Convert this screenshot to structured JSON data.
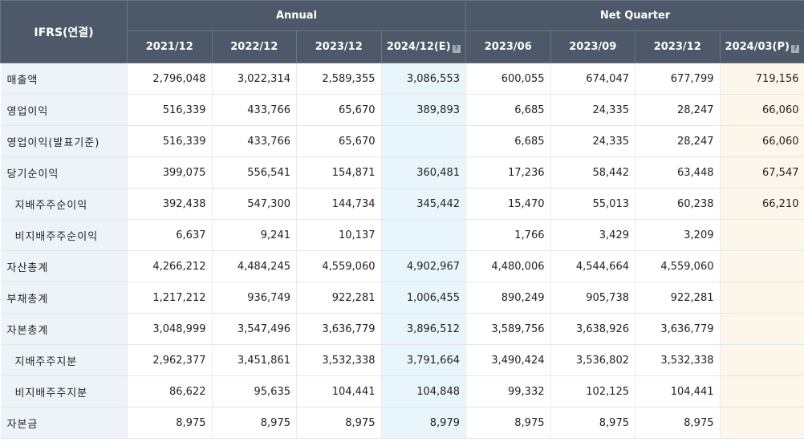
{
  "header": {
    "corner_label": "IFRS(연결)",
    "groups": {
      "annual": "Annual",
      "quarter": "Net Quarter"
    },
    "periods": [
      "2021/12",
      "2022/12",
      "2023/12",
      "2024/12(E)",
      "2023/06",
      "2023/09",
      "2023/12",
      "2024/03(P)"
    ],
    "estimate_icon": "info-square-icon"
  },
  "colors": {
    "header_bg": "#4d5868",
    "label_bg": "#eef3f9",
    "estimate_annual_bg": "#e8f5fb",
    "estimate_quarter_bg": "#fdf6ea"
  },
  "rows": [
    {
      "label": "매출액",
      "sub": false,
      "values": [
        "2,796,048",
        "3,022,314",
        "2,589,355",
        "3,086,553",
        "600,055",
        "674,047",
        "677,799",
        "719,156"
      ]
    },
    {
      "label": "영업이익",
      "sub": false,
      "values": [
        "516,339",
        "433,766",
        "65,670",
        "389,893",
        "6,685",
        "24,335",
        "28,247",
        "66,060"
      ]
    },
    {
      "label": "영업이익(발표기준)",
      "sub": false,
      "values": [
        "516,339",
        "433,766",
        "65,670",
        "",
        "6,685",
        "24,335",
        "28,247",
        "66,060"
      ]
    },
    {
      "label": "당기순이익",
      "sub": false,
      "values": [
        "399,075",
        "556,541",
        "154,871",
        "360,481",
        "17,236",
        "58,442",
        "63,448",
        "67,547"
      ]
    },
    {
      "label": "지배주주순이익",
      "sub": true,
      "values": [
        "392,438",
        "547,300",
        "144,734",
        "345,442",
        "15,470",
        "55,013",
        "60,238",
        "66,210"
      ]
    },
    {
      "label": "비지배주주순이익",
      "sub": true,
      "values": [
        "6,637",
        "9,241",
        "10,137",
        "",
        "1,766",
        "3,429",
        "3,209",
        ""
      ]
    },
    {
      "label": "자산총계",
      "sub": false,
      "values": [
        "4,266,212",
        "4,484,245",
        "4,559,060",
        "4,902,967",
        "4,480,006",
        "4,544,664",
        "4,559,060",
        ""
      ]
    },
    {
      "label": "부채총계",
      "sub": false,
      "values": [
        "1,217,212",
        "936,749",
        "922,281",
        "1,006,455",
        "890,249",
        "905,738",
        "922,281",
        ""
      ]
    },
    {
      "label": "자본총계",
      "sub": false,
      "values": [
        "3,048,999",
        "3,547,496",
        "3,636,779",
        "3,896,512",
        "3,589,756",
        "3,638,926",
        "3,636,779",
        ""
      ]
    },
    {
      "label": "지배주주지분",
      "sub": true,
      "values": [
        "2,962,377",
        "3,451,861",
        "3,532,338",
        "3,791,664",
        "3,490,424",
        "3,536,802",
        "3,532,338",
        ""
      ]
    },
    {
      "label": "비지배주주지분",
      "sub": true,
      "values": [
        "86,622",
        "95,635",
        "104,441",
        "104,848",
        "99,332",
        "102,125",
        "104,441",
        ""
      ]
    },
    {
      "label": "자본금",
      "sub": false,
      "values": [
        "8,975",
        "8,975",
        "8,975",
        "8,979",
        "8,975",
        "8,975",
        "8,975",
        ""
      ]
    }
  ]
}
